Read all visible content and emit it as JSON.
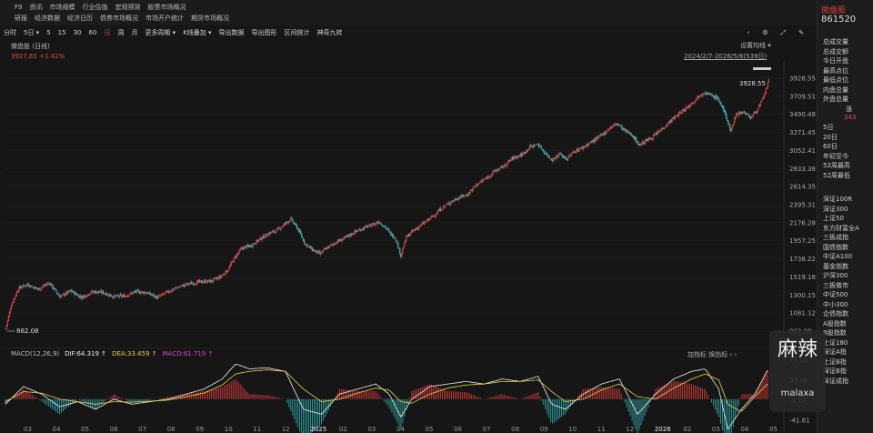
{
  "nav": {
    "row1": [
      "F9",
      "资讯",
      "市场规模",
      "行业估值",
      "宏观预测",
      "股票市场概况"
    ],
    "row2": [
      "研报",
      "经济数据",
      "经济日历",
      "债券市场概况",
      "市场开户统计",
      "期货市场概况"
    ]
  },
  "toolbar": {
    "items": [
      "分时",
      "5日 ▾",
      "5",
      "15",
      "30",
      "60",
      "日",
      "周",
      "月",
      "更多周期 ▾",
      "K线叠加 ▾",
      "导出数据",
      "导出图形",
      "区间统计",
      "神奇九转"
    ],
    "active": "日",
    "icons": [
      "≡-icon",
      "gear-icon",
      "pen-icon",
      "pin-icon"
    ],
    "icon_glyphs": [
      "‹",
      "⚙",
      "⤢",
      "✎"
    ]
  },
  "chart": {
    "title": "微盘股 (日线)",
    "price_line": "3927.61  +1.42%",
    "settings": "设置均线 ▾",
    "date_range": "2024/2/7-2026/5/8(539日)",
    "high_label": "3928.55",
    "low_label": "862.08",
    "yticks": [
      "3928.55",
      "3709.51",
      "3490.48",
      "3271.45",
      "3052.41",
      "2833.38",
      "2614.35",
      "2395.31",
      "2176.28",
      "1957.25",
      "1738.22",
      "1519.18",
      "1300.15",
      "1081.12",
      "862.08"
    ],
    "xticks": [
      "03",
      "04",
      "05",
      "06",
      "07",
      "08",
      "09",
      "10",
      "11",
      "12",
      "2025",
      "02",
      "03",
      "04",
      "05",
      "06",
      "07",
      "08",
      "09",
      "10",
      "11",
      "12",
      "2026",
      "02",
      "03",
      "04",
      "05"
    ]
  },
  "macd": {
    "label": "MACD(12,26,9)",
    "dif": "DIF:64.319 ↑",
    "dea": "DEA:33.459 ↑",
    "macd": "MACD:61.719 ↑",
    "tools": "加指标  换指标 ‹ ›",
    "yticks": [
      "77.10",
      "37.46",
      "-2.17",
      "-41.81"
    ]
  },
  "sidebar": {
    "name": "微盘股",
    "code": "861520",
    "list1": [
      "总成交量",
      "总成交额",
      "今日开盘",
      "最高点位",
      "最低点位",
      "内盘总量",
      "外盘总量"
    ],
    "rise_label": "涨",
    "rise_value": "343",
    "list2": [
      "5日",
      "20日",
      "60日",
      "年初至今",
      "52周最高",
      "52周最低"
    ],
    "list3": [
      "深证100R",
      "深证300",
      "上证50",
      "东方财富全A",
      "三板成指",
      "国债指数",
      "中证A100",
      "基金指数",
      "沪深300",
      "三板做市",
      "中证500",
      "中小300",
      "企债指数",
      "A股指数",
      "B股指数",
      "上证180",
      "深证A指",
      "上证B指",
      "深证B指",
      "深证成指"
    ]
  },
  "watermark": {
    "text": "麻辣",
    "sub": "malaxa"
  },
  "chart_data": {
    "type": "candlestick",
    "title": "微盘股 (日线)",
    "ylim": [
      862.08,
      3928.55
    ],
    "x_markers": [
      "03",
      "04",
      "05",
      "06",
      "07",
      "08",
      "09",
      "10",
      "11",
      "12",
      "2025",
      "02",
      "03",
      "04",
      "05",
      "06",
      "07",
      "08",
      "09",
      "10",
      "11",
      "12",
      "2026",
      "02",
      "03",
      "04",
      "05"
    ],
    "close_series": [
      [
        0,
        890
      ],
      [
        6,
        1180
      ],
      [
        14,
        1380
      ],
      [
        24,
        1430
      ],
      [
        36,
        1370
      ],
      [
        48,
        1450
      ],
      [
        60,
        1280
      ],
      [
        72,
        1350
      ],
      [
        84,
        1270
      ],
      [
        96,
        1340
      ],
      [
        108,
        1330
      ],
      [
        120,
        1280
      ],
      [
        132,
        1290
      ],
      [
        144,
        1340
      ],
      [
        156,
        1330
      ],
      [
        168,
        1270
      ],
      [
        180,
        1340
      ],
      [
        192,
        1400
      ],
      [
        204,
        1440
      ],
      [
        216,
        1460
      ],
      [
        228,
        1470
      ],
      [
        238,
        1520
      ],
      [
        246,
        1600
      ],
      [
        254,
        1760
      ],
      [
        262,
        1870
      ],
      [
        272,
        1900
      ],
      [
        282,
        1980
      ],
      [
        292,
        2050
      ],
      [
        300,
        2080
      ],
      [
        308,
        2150
      ],
      [
        316,
        2220
      ],
      [
        324,
        2100
      ],
      [
        332,
        1920
      ],
      [
        340,
        1850
      ],
      [
        348,
        1800
      ],
      [
        356,
        1870
      ],
      [
        366,
        1940
      ],
      [
        376,
        1990
      ],
      [
        386,
        2060
      ],
      [
        396,
        2110
      ],
      [
        406,
        2150
      ],
      [
        414,
        2190
      ],
      [
        420,
        2130
      ],
      [
        426,
        2050
      ],
      [
        432,
        1990
      ],
      [
        438,
        1780
      ],
      [
        444,
        2000
      ],
      [
        452,
        2080
      ],
      [
        462,
        2160
      ],
      [
        472,
        2240
      ],
      [
        482,
        2340
      ],
      [
        492,
        2420
      ],
      [
        502,
        2480
      ],
      [
        512,
        2520
      ],
      [
        522,
        2640
      ],
      [
        532,
        2710
      ],
      [
        542,
        2800
      ],
      [
        552,
        2860
      ],
      [
        562,
        2960
      ],
      [
        572,
        3000
      ],
      [
        582,
        3100
      ],
      [
        590,
        3130
      ],
      [
        598,
        3020
      ],
      [
        606,
        2940
      ],
      [
        614,
        3010
      ],
      [
        622,
        2950
      ],
      [
        630,
        3040
      ],
      [
        640,
        3090
      ],
      [
        650,
        3160
      ],
      [
        660,
        3230
      ],
      [
        670,
        3330
      ],
      [
        678,
        3380
      ],
      [
        686,
        3290
      ],
      [
        694,
        3250
      ],
      [
        702,
        3120
      ],
      [
        710,
        3170
      ],
      [
        718,
        3220
      ],
      [
        728,
        3320
      ],
      [
        738,
        3420
      ],
      [
        748,
        3510
      ],
      [
        758,
        3600
      ],
      [
        766,
        3690
      ],
      [
        774,
        3760
      ],
      [
        782,
        3720
      ],
      [
        790,
        3680
      ],
      [
        798,
        3480
      ],
      [
        804,
        3290
      ],
      [
        810,
        3500
      ],
      [
        818,
        3520
      ],
      [
        826,
        3450
      ],
      [
        834,
        3560
      ],
      [
        840,
        3690
      ],
      [
        846,
        3900
      ]
    ],
    "macd_dif_points": [
      [
        0,
        -10
      ],
      [
        20,
        25
      ],
      [
        40,
        10
      ],
      [
        60,
        -15
      ],
      [
        80,
        -5
      ],
      [
        100,
        -20
      ],
      [
        120,
        0
      ],
      [
        140,
        -10
      ],
      [
        160,
        -5
      ],
      [
        180,
        0
      ],
      [
        200,
        10
      ],
      [
        220,
        20
      ],
      [
        240,
        40
      ],
      [
        255,
        70
      ],
      [
        270,
        60
      ],
      [
        290,
        62
      ],
      [
        310,
        55
      ],
      [
        330,
        -20
      ],
      [
        350,
        -30
      ],
      [
        370,
        10
      ],
      [
        390,
        20
      ],
      [
        410,
        30
      ],
      [
        425,
        10
      ],
      [
        438,
        -35
      ],
      [
        450,
        0
      ],
      [
        470,
        25
      ],
      [
        490,
        30
      ],
      [
        510,
        35
      ],
      [
        530,
        30
      ],
      [
        550,
        40
      ],
      [
        570,
        35
      ],
      [
        590,
        45
      ],
      [
        605,
        -10
      ],
      [
        620,
        -20
      ],
      [
        640,
        10
      ],
      [
        660,
        30
      ],
      [
        680,
        40
      ],
      [
        700,
        -30
      ],
      [
        720,
        10
      ],
      [
        740,
        40
      ],
      [
        760,
        55
      ],
      [
        775,
        60
      ],
      [
        790,
        20
      ],
      [
        800,
        -60
      ],
      [
        815,
        -20
      ],
      [
        830,
        10
      ],
      [
        846,
        64.3
      ]
    ],
    "macd_dea_points": [
      [
        0,
        -5
      ],
      [
        20,
        15
      ],
      [
        40,
        12
      ],
      [
        60,
        0
      ],
      [
        80,
        -5
      ],
      [
        100,
        -10
      ],
      [
        120,
        -5
      ],
      [
        140,
        -6
      ],
      [
        160,
        -4
      ],
      [
        180,
        -2
      ],
      [
        200,
        5
      ],
      [
        220,
        12
      ],
      [
        240,
        28
      ],
      [
        255,
        50
      ],
      [
        270,
        55
      ],
      [
        290,
        58
      ],
      [
        310,
        55
      ],
      [
        330,
        20
      ],
      [
        350,
        -5
      ],
      [
        370,
        0
      ],
      [
        390,
        12
      ],
      [
        410,
        22
      ],
      [
        425,
        18
      ],
      [
        438,
        -5
      ],
      [
        450,
        -8
      ],
      [
        470,
        10
      ],
      [
        490,
        22
      ],
      [
        510,
        28
      ],
      [
        530,
        30
      ],
      [
        550,
        35
      ],
      [
        570,
        35
      ],
      [
        590,
        38
      ],
      [
        605,
        15
      ],
      [
        620,
        -5
      ],
      [
        640,
        0
      ],
      [
        660,
        18
      ],
      [
        680,
        30
      ],
      [
        700,
        5
      ],
      [
        720,
        0
      ],
      [
        740,
        22
      ],
      [
        760,
        40
      ],
      [
        775,
        50
      ],
      [
        790,
        38
      ],
      [
        800,
        -10
      ],
      [
        815,
        -25
      ],
      [
        830,
        5
      ],
      [
        846,
        33.5
      ]
    ],
    "macd_ylim": [
      -41.81,
      77.1
    ]
  }
}
